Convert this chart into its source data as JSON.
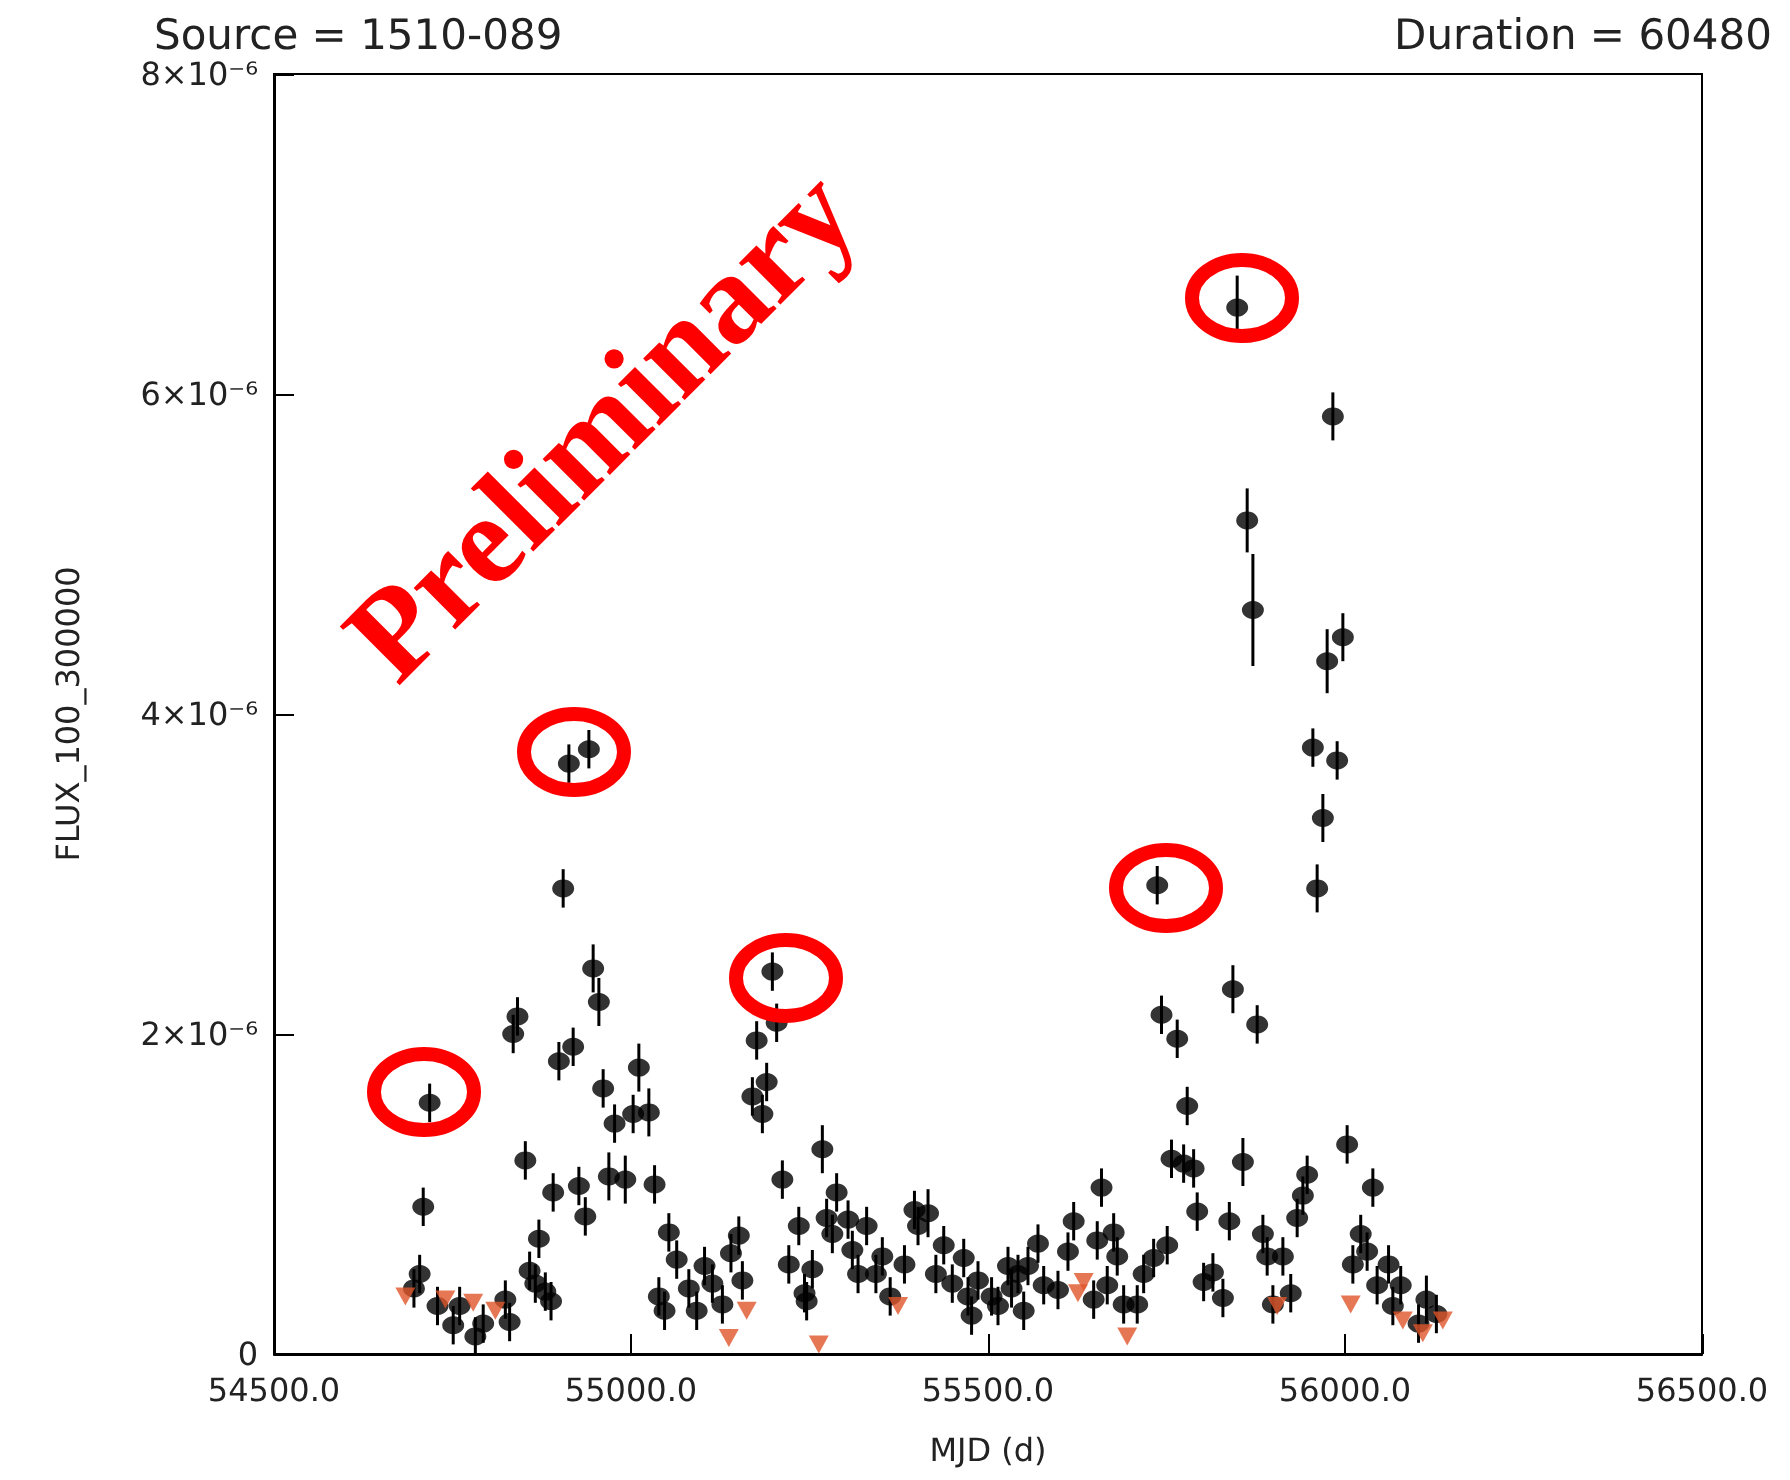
{
  "chart_data": {
    "type": "scatter",
    "title": "Source = 1510-089",
    "subtitle": "Duration = 60480",
    "xlabel": "MJD (d)",
    "ylabel": "FLUX_100_300000",
    "annotations": [
      "Preliminary"
    ],
    "xlim": [
      54500,
      56500
    ],
    "xticks": [
      {
        "value": 54500,
        "label": "54500.0"
      },
      {
        "value": 55000,
        "label": "55000.0"
      },
      {
        "value": 55500,
        "label": "55500.0"
      },
      {
        "value": 56000,
        "label": "56000.0"
      },
      {
        "value": 56500,
        "label": "56500.0"
      }
    ],
    "ylim": [
      0,
      8e-06
    ],
    "yticks": [
      0,
      {
        "value": 2e-06,
        "label": "2×10⁻⁶"
      },
      {
        "value": 4e-06,
        "label": "4×10⁻⁶"
      },
      {
        "value": 6e-06,
        "label": "6×10⁻⁶"
      },
      {
        "value": 8e-06,
        "label": "8×10⁻⁶"
      }
    ],
    "series": [
      {
        "color": "#000000",
        "marker": "circle",
        "x": [
          54913,
          54941,
          54905,
          54947,
          54955,
          54841,
          54835,
          54919,
          54899,
          55011,
          54718,
          54961,
          54977,
          55003,
          55025,
          54852,
          54709,
          54891,
          54927,
          54969,
          54992,
          55033,
          54936,
          54871,
          55053,
          55064,
          54704,
          54696,
          54858,
          54866,
          54880,
          54888,
          54729,
          54760,
          54751,
          54793,
          54824,
          54830,
          54782,
          55039,
          55047,
          55081,
          55092,
          55103,
          55114,
          55198,
          55176,
          55204,
          55190,
          55170,
          55184,
          55268,
          55212,
          55288,
          55235,
          55274,
          55304,
          55330,
          55282,
          55310,
          55397,
          55416,
          55402,
          55151,
          55140,
          55156,
          55128,
          55221,
          55254,
          55243,
          55246,
          55318,
          55352,
          55383,
          55343,
          55363,
          55438,
          55427,
          55466,
          55450,
          55486,
          55472,
          55505,
          55514,
          55477,
          55528,
          55542,
          55556,
          55533,
          55550,
          55570,
          55578,
          55598,
          55620,
          55612,
          55737,
          55961,
          55843,
          55743,
          55877,
          55765,
          55779,
          55757,
          55774,
          55788,
          55857,
          56003,
          55793,
          55659,
          55838,
          55947,
          55941,
          55933,
          55653,
          55676,
          55681,
          55667,
          55648,
          55690,
          55709,
          55718,
          55732,
          55751,
          55802,
          55815,
          55829,
          55885,
          55891,
          55913,
          55899,
          55924,
          56011,
          55849,
          55983,
          55863,
          55871,
          55997,
          55975,
          55955,
          55989,
          55969,
          56039,
          56022,
          56031,
          56061,
          56045,
          56067,
          56078,
          56114,
          56103,
          56128
        ],
        "values": [
          3.69e-06,
          3.78e-06,
          2.91e-06,
          2.41e-06,
          2.2e-06,
          2.11e-06,
          2e-06,
          1.92e-06,
          1.83e-06,
          1.79e-06,
          1.57e-06,
          1.66e-06,
          1.44e-06,
          1.5e-06,
          1.51e-06,
          1.21e-06,
          9.2e-07,
          1.01e-06,
          1.05e-06,
          1.11e-06,
          1.09e-06,
          1.06e-06,
          8.6e-07,
          7.2e-07,
          7.6e-07,
          5.9e-07,
          5e-07,
          4.1e-07,
          5.2e-07,
          4.4e-07,
          3.9e-07,
          3.3e-07,
          3e-07,
          3e-07,
          1.8e-07,
          1.9e-07,
          3.4e-07,
          2e-07,
          1.1e-07,
          3.6e-07,
          2.7e-07,
          4.1e-07,
          2.7e-07,
          5.5e-07,
          4.4e-07,
          2.39e-06,
          1.96e-06,
          2.07e-06,
          1.7e-06,
          1.61e-06,
          1.5e-06,
          1.28e-06,
          1.09e-06,
          1.01e-06,
          8e-07,
          8.5e-07,
          8.4e-07,
          8e-07,
          7.5e-07,
          6.5e-07,
          9e-07,
          8.8e-07,
          8e-07,
          7.4e-07,
          6.3e-07,
          4.6e-07,
          3.1e-07,
          5.6e-07,
          5.3e-07,
          3.8e-07,
          3.3e-07,
          5e-07,
          6.1e-07,
          5.6e-07,
          5e-07,
          3.6e-07,
          6.8e-07,
          5e-07,
          6e-07,
          4.4e-07,
          4.6e-07,
          3.6e-07,
          3.6e-07,
          3e-07,
          2.4e-07,
          5.5e-07,
          5e-07,
          5.5e-07,
          4.1e-07,
          2.7e-07,
          6.9e-07,
          4.3e-07,
          4e-07,
          8.3e-07,
          6.4e-07,
          2.93e-06,
          2.91e-06,
          2.28e-06,
          2.12e-06,
          2.06e-06,
          1.97e-06,
          1.55e-06,
          1.22e-06,
          1.19e-06,
          1.16e-06,
          1.2e-06,
          1.31e-06,
          8.9e-07,
          1.04e-06,
          8.3e-07,
          1.12e-06,
          9.9e-07,
          8.5e-07,
          7.1e-07,
          7.6e-07,
          6.1e-07,
          4.3e-07,
          3.4e-07,
          3.1e-07,
          3.1e-07,
          5e-07,
          6e-07,
          6.8e-07,
          4.5e-07,
          5.1e-07,
          3.5e-07,
          7.5e-07,
          6.1e-07,
          6.1e-07,
          3.1e-07,
          3.8e-07,
          5.6e-07,
          6.54e-06,
          5.86e-06,
          5.21e-06,
          4.65e-06,
          4.48e-06,
          4.33e-06,
          3.79e-06,
          3.71e-06,
          3.35e-06,
          1.04e-06,
          7.5e-07,
          6.4e-07,
          5.6e-07,
          4.3e-07,
          3e-07,
          4.3e-07,
          3.4e-07,
          1.9e-07,
          2.5e-07
        ],
        "errors": [
          1.2e-07,
          1.2e-07,
          1.2e-07,
          1.5e-07,
          1.5e-07,
          1.2e-07,
          1.2e-07,
          1.2e-07,
          1.2e-07,
          1.5e-07,
          1.2e-07,
          1.2e-07,
          1.2e-07,
          1.2e-07,
          1.5e-07,
          1.2e-07,
          1.2e-07,
          1.2e-07,
          1.2e-07,
          1.5e-07,
          1.5e-07,
          1.2e-07,
          1.2e-07,
          1.2e-07,
          1.2e-07,
          1.2e-07,
          1.2e-07,
          1.2e-07,
          1.2e-07,
          1.2e-07,
          1.2e-07,
          1.2e-07,
          1.2e-07,
          1.2e-07,
          1.2e-07,
          1.2e-07,
          1.2e-07,
          1.2e-07,
          1.2e-07,
          1.2e-07,
          1.2e-07,
          1.2e-07,
          1.2e-07,
          1.2e-07,
          1.2e-07,
          1.2e-07,
          1.2e-07,
          1.2e-07,
          1.2e-07,
          1.2e-07,
          1.2e-07,
          1.5e-07,
          1.2e-07,
          1.2e-07,
          1.2e-07,
          1.2e-07,
          1.2e-07,
          1.2e-07,
          1.2e-07,
          1.2e-07,
          1.2e-07,
          1.5e-07,
          1.2e-07,
          1.2e-07,
          1.2e-07,
          1.2e-07,
          1.2e-07,
          1.2e-07,
          1.2e-07,
          1.2e-07,
          1.2e-07,
          1.2e-07,
          1.2e-07,
          1.2e-07,
          1.2e-07,
          1.2e-07,
          1.2e-07,
          1.2e-07,
          1.2e-07,
          1.2e-07,
          1.2e-07,
          1.2e-07,
          1.2e-07,
          1.2e-07,
          1.2e-07,
          1.2e-07,
          1.2e-07,
          1.2e-07,
          1.2e-07,
          1.2e-07,
          1.2e-07,
          1.2e-07,
          1.2e-07,
          1.2e-07,
          1.2e-07,
          1.2e-07,
          1.5e-07,
          1.5e-07,
          1.2e-07,
          1.2e-07,
          1.2e-07,
          1.2e-07,
          1.2e-07,
          1.2e-07,
          1.2e-07,
          1.5e-07,
          1.2e-07,
          1.2e-07,
          1.2e-07,
          1.2e-07,
          1.2e-07,
          1.2e-07,
          1.2e-07,
          1.2e-07,
          1.2e-07,
          1.2e-07,
          1.2e-07,
          1.2e-07,
          1.2e-07,
          1.2e-07,
          1.2e-07,
          1.2e-07,
          1.2e-07,
          1.2e-07,
          1.2e-07,
          1.2e-07,
          1.2e-07,
          1.2e-07,
          1.2e-07,
          1.2e-07,
          1.2e-07,
          1.2e-07,
          2e-07,
          1.5e-07,
          2e-07,
          3.5e-07,
          1.5e-07,
          2e-07,
          1.2e-07,
          1.2e-07,
          1.5e-07,
          1.2e-07,
          1.2e-07,
          1.2e-07,
          1.2e-07,
          1.2e-07,
          1.2e-07,
          1.2e-07,
          1.5e-07,
          1.2e-07,
          1.2e-07
        ]
      },
      {
        "color": "#e0552a",
        "marker": "triangle",
        "x": [
          54684,
          54740,
          54779,
          54810,
          55137,
          55162,
          55263,
          55374,
          55626,
          55634,
          55695,
          55905,
          56008,
          56081,
          56109,
          56137
        ],
        "values": [
          3.6e-07,
          3.4e-07,
          3.2e-07,
          2.7e-07,
          1e-07,
          2.7e-07,
          6e-08,
          3e-07,
          3.8e-07,
          4.5e-07,
          1.1e-07,
          3e-07,
          3.1e-07,
          2.1e-07,
          1.3e-07,
          2.1e-07
        ]
      }
    ]
  }
}
